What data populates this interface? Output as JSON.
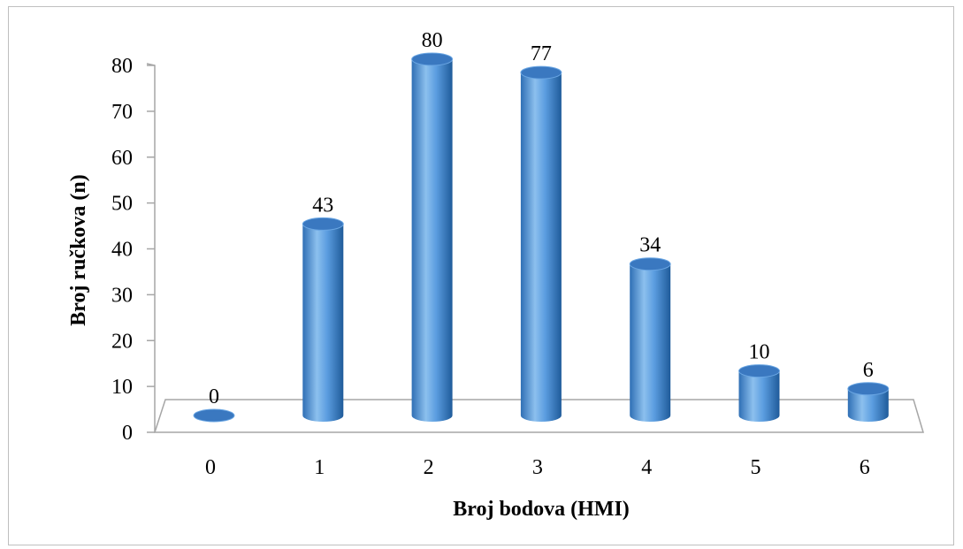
{
  "chart_data": {
    "type": "bar",
    "style": "3d-cylinder",
    "categories": [
      "0",
      "1",
      "2",
      "3",
      "4",
      "5",
      "6"
    ],
    "values": [
      0,
      43,
      80,
      77,
      34,
      10,
      6
    ],
    "data_labels": [
      "0",
      "43",
      "80",
      "77",
      "34",
      "10",
      "6"
    ],
    "y_ticks": [
      "0",
      "10",
      "20",
      "30",
      "40",
      "50",
      "60",
      "70",
      "80"
    ],
    "title": "",
    "xlabel": "Broj bodova (HMI)",
    "ylabel": "Broj ručkova (n)",
    "ylim": [
      0,
      80
    ],
    "grid": false,
    "legend": "none",
    "bar_color": "#4a8fd6",
    "bar_highlight": "#8cc0ee",
    "bar_shadow": "#1f5b9a",
    "bar_top": "#3a78c0"
  }
}
